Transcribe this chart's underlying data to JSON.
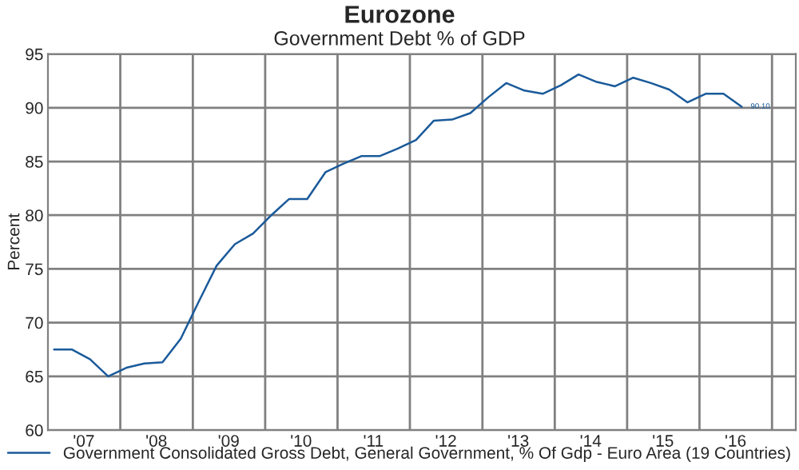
{
  "chart_data": {
    "type": "line",
    "title": "Eurozone",
    "subtitle": "Government Debt % of GDP",
    "ylabel": "Percent",
    "x": [
      "2007-02",
      "2007-05",
      "2007-08",
      "2007-11",
      "2008-02",
      "2008-05",
      "2008-08",
      "2008-11",
      "2009-02",
      "2009-05",
      "2009-08",
      "2009-11",
      "2010-02",
      "2010-05",
      "2010-08",
      "2010-11",
      "2011-02",
      "2011-05",
      "2011-08",
      "2011-11",
      "2012-02",
      "2012-05",
      "2012-08",
      "2012-11",
      "2013-02",
      "2013-05",
      "2013-08",
      "2013-11",
      "2014-02",
      "2014-05",
      "2014-08",
      "2014-11",
      "2015-02",
      "2015-05",
      "2015-08",
      "2015-11",
      "2016-02",
      "2016-05",
      "2016-08"
    ],
    "series": [
      {
        "name": "Government Consolidated Gross Debt, General Government, % Of Gdp - Euro Area (19 Countries)",
        "color": "#1a5a9a",
        "values": [
          67.5,
          67.5,
          66.6,
          65.0,
          65.8,
          66.2,
          66.3,
          68.5,
          72.0,
          75.3,
          77.3,
          78.3,
          80.0,
          81.5,
          81.5,
          84.0,
          84.8,
          85.5,
          85.5,
          86.2,
          87.0,
          88.8,
          88.9,
          89.5,
          91.0,
          92.3,
          91.6,
          91.3,
          92.1,
          93.1,
          92.4,
          92.0,
          92.8,
          92.3,
          91.7,
          90.5,
          91.3,
          91.3,
          90.1
        ],
        "value_labels": [
          null,
          null,
          null,
          null,
          null,
          null,
          null,
          null,
          null,
          null,
          null,
          null,
          null,
          null,
          null,
          null,
          null,
          null,
          null,
          null,
          null,
          null,
          null,
          null,
          null,
          null,
          null,
          null,
          null,
          null,
          null,
          null,
          null,
          null,
          null,
          null,
          null,
          null,
          "90.10"
        ]
      }
    ],
    "xlim": [
      "2007-01",
      "2017-05"
    ],
    "ylim": [
      60,
      95
    ],
    "yticks": [
      60,
      65,
      70,
      75,
      80,
      85,
      90,
      95
    ],
    "xticks": [
      {
        "value": "2007-07",
        "label": "'07"
      },
      {
        "value": "2008",
        "label": null
      },
      {
        "value": "2008-07",
        "label": "'08"
      },
      {
        "value": "2009",
        "label": null
      },
      {
        "value": "2009-07",
        "label": "'09"
      },
      {
        "value": "2010",
        "label": null
      },
      {
        "value": "2010-07",
        "label": "'10"
      },
      {
        "value": "2011",
        "label": null
      },
      {
        "value": "2011-07",
        "label": "'11"
      },
      {
        "value": "2012",
        "label": null
      },
      {
        "value": "2012-07",
        "label": "'12"
      },
      {
        "value": "2013",
        "label": null
      },
      {
        "value": "2013-07",
        "label": "'13"
      },
      {
        "value": "2014",
        "label": null
      },
      {
        "value": "2014-07",
        "label": "'14"
      },
      {
        "value": "2015",
        "label": null
      },
      {
        "value": "2015-07",
        "label": "'15"
      },
      {
        "value": "2016",
        "label": null
      },
      {
        "value": "2016-07",
        "label": "'16"
      },
      {
        "value": "2017",
        "label": null
      }
    ],
    "grid": true,
    "legend": "bottom",
    "marker": "none",
    "line_style": "solid"
  }
}
